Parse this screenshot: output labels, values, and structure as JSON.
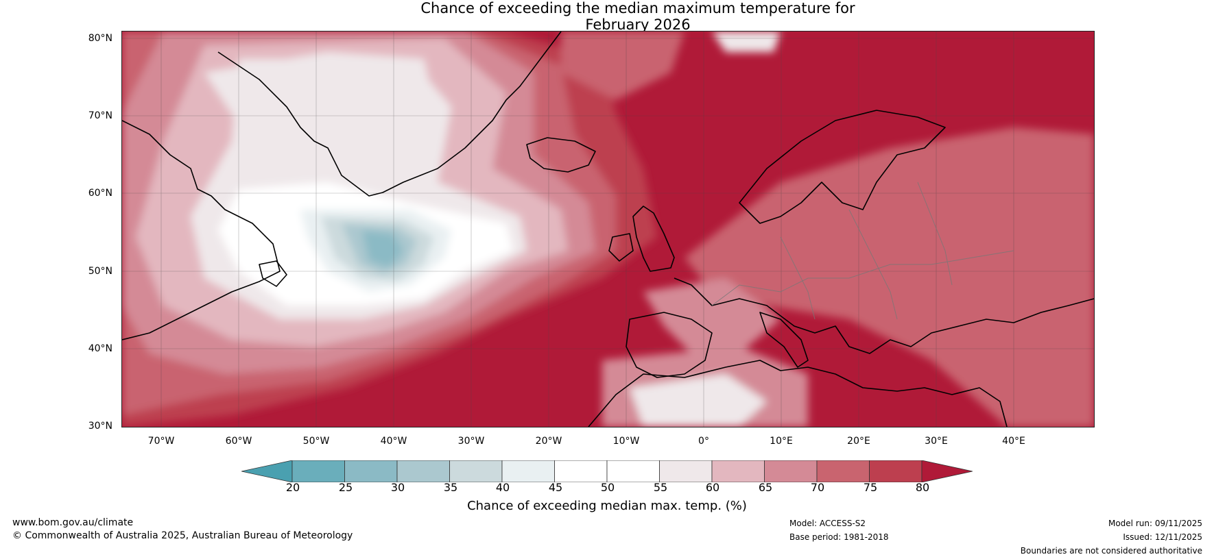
{
  "title": {
    "line1": "Chance of exceeding the median maximum temperature for",
    "line2": "February 2026"
  },
  "lat_labels": [
    "80°N",
    "70°N",
    "60°N",
    "50°N",
    "40°N",
    "30°N"
  ],
  "lon_labels": [
    "70°W",
    "60°W",
    "50°W",
    "40°W",
    "30°W",
    "20°W",
    "10°W",
    "0°",
    "10°E",
    "20°E",
    "30°E",
    "40°E"
  ],
  "colorbar": {
    "ticks": [
      "20",
      "25",
      "30",
      "35",
      "40",
      "45",
      "50",
      "55",
      "60",
      "65",
      "70",
      "75",
      "80"
    ],
    "label": "Chance of exceeding median max. temp. (%)",
    "colors": [
      "#4aa0b0",
      "#6aaebb",
      "#8bbac5",
      "#abc8cf",
      "#ccdadd",
      "#e9f0f2",
      "#ffffff",
      "#ffffff",
      "#efe8ea",
      "#e3b7bf",
      "#d48a96",
      "#c9646f",
      "#bd3f4f",
      "#b01a38"
    ]
  },
  "footer": {
    "website": "www.bom.gov.au/climate",
    "copyright": "© Commonwealth of Australia 2025, Australian Bureau of Meteorology",
    "model": "Model: ACCESS-S2",
    "base_period": "Base period: 1981-2018",
    "model_run": "Model run: 09/11/2025",
    "issued": "Issued: 12/11/2025",
    "disclaimer": "Boundaries are not considered authoritative"
  }
}
